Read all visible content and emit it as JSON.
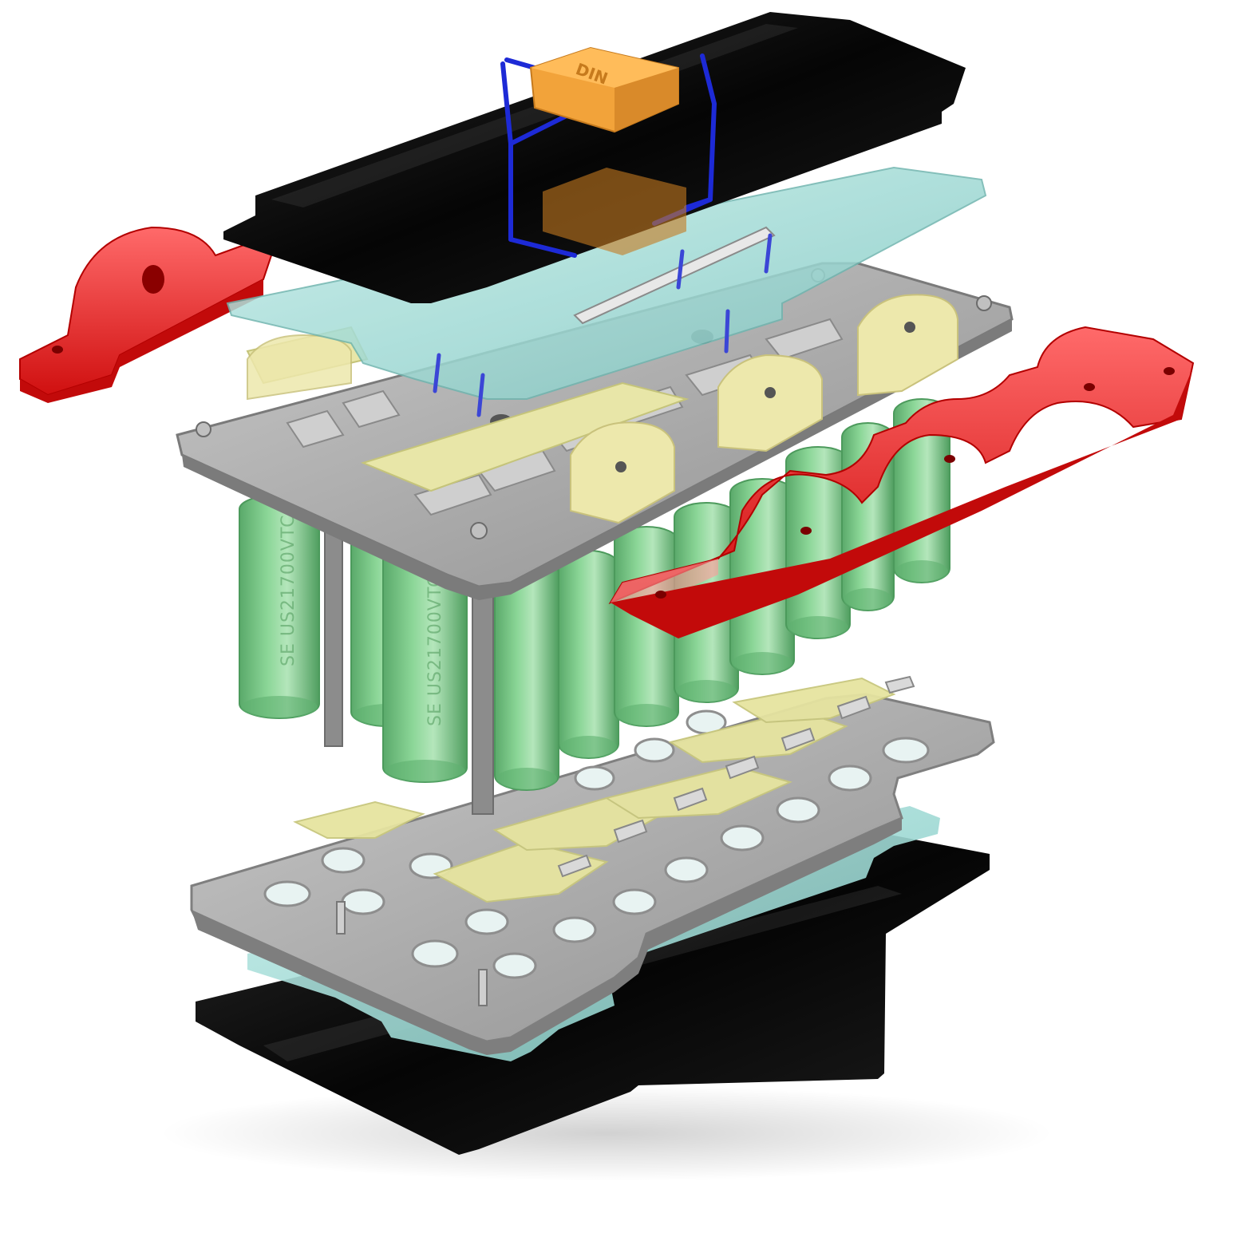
{
  "diagram": {
    "cell_label": "SE US21700VTC6A",
    "cell_label_partial": "SE US21700VTC6A 0",
    "colors": {
      "cell": "#7cc98a",
      "cell_shadow": "#4f9e5f",
      "cell_highlight": "#b6e8bd",
      "plate": "#a9a9a9",
      "plate_edge": "#8a8a8a",
      "busbar": "#e41f1f",
      "busbar_light": "#f25a5a",
      "insulator": "#111111",
      "glass": "#9ed9d4",
      "paper": "#e8e6a8",
      "connector": "#f0a030",
      "wire": "#2233cc",
      "rod": "#8a8a8a"
    }
  }
}
